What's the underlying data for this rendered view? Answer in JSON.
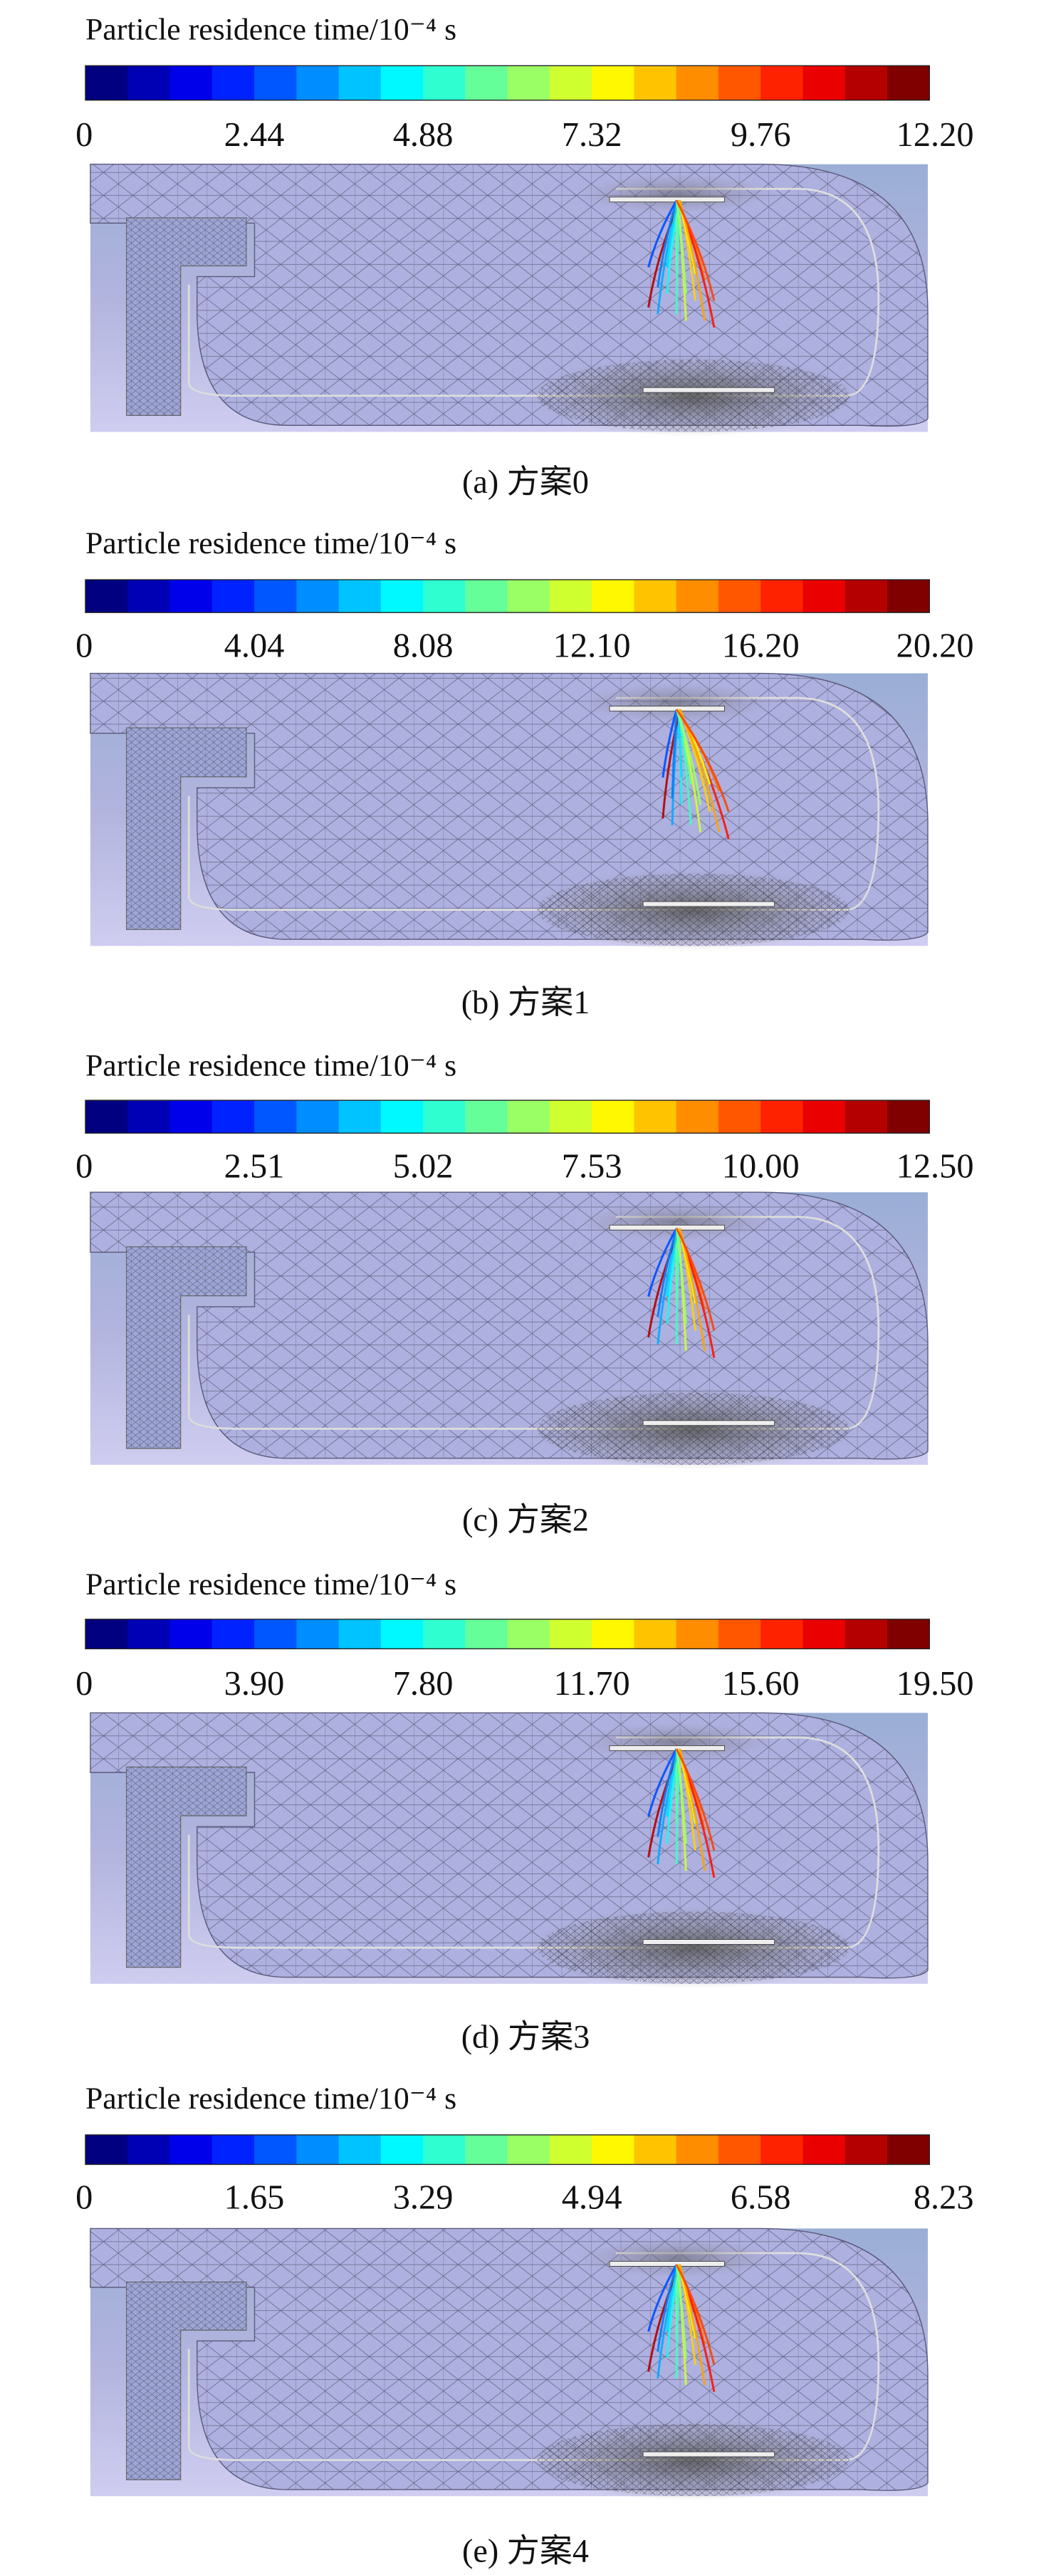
{
  "panels": [
    {
      "title": "Particle residence time/10⁻⁴ s",
      "ticks": [
        "0",
        "2.44",
        "4.88",
        "7.32",
        "9.76",
        "12.20"
      ],
      "caption": "(a) 方案0"
    },
    {
      "title": "Particle residence time/10⁻⁴ s",
      "ticks": [
        "0",
        "4.04",
        "8.08",
        "12.10",
        "16.20",
        "20.20"
      ],
      "caption": "(b) 方案1"
    },
    {
      "title": "Particle residence time/10⁻⁴ s",
      "ticks": [
        "0",
        "2.51",
        "5.02",
        "7.53",
        "10.00",
        "12.50"
      ],
      "caption": "(c) 方案2"
    },
    {
      "title": "Particle residence time/10⁻⁴ s",
      "ticks": [
        "0",
        "3.90",
        "7.80",
        "11.70",
        "15.60",
        "19.50"
      ],
      "caption": "(d) 方案3"
    },
    {
      "title": "Particle residence time/10⁻⁴ s",
      "ticks": [
        "0",
        "1.65",
        "3.29",
        "4.94",
        "6.58",
        "8.23"
      ],
      "caption": "(e) 方案4"
    }
  ]
}
